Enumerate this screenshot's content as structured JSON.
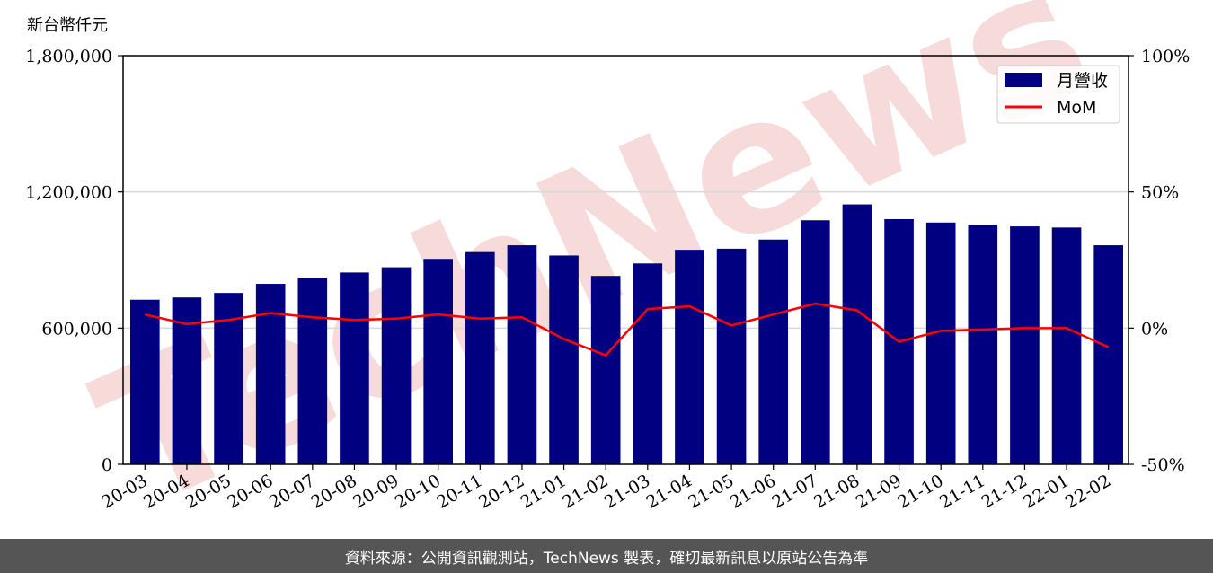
{
  "footer": {
    "text": "資料來源：公開資訊觀測站，TechNews 製表，確切最新訊息以原站公告為準",
    "background": "#555555"
  },
  "watermark": {
    "text": "TechNews",
    "color": "#f6d4d4"
  },
  "colors": {
    "bar": "#000080",
    "line": "#ff0000",
    "grid": "#d9d9d9"
  },
  "chart_data": {
    "type": "bar",
    "title": "",
    "xlabel": "",
    "ylabel": "新台幣仟元",
    "ylim": [
      0,
      1800000
    ],
    "y2lim": [
      -50,
      100
    ],
    "yticks": [
      "0",
      "600,000",
      "1,200,000",
      "1,800,000"
    ],
    "y2ticks": [
      "-50%",
      "0%",
      "50%",
      "100%"
    ],
    "grid": "horizontal",
    "legend_position": "top-right",
    "categories": [
      "20-03",
      "20-04",
      "20-05",
      "20-06",
      "20-07",
      "20-08",
      "20-09",
      "20-10",
      "20-11",
      "20-12",
      "21-01",
      "21-02",
      "21-03",
      "21-04",
      "21-05",
      "21-06",
      "21-07",
      "21-08",
      "21-09",
      "21-10",
      "21-11",
      "21-12",
      "22-01",
      "22-02"
    ],
    "series": [
      {
        "name": "月營收",
        "type": "bar",
        "axis": "left",
        "values": [
          725000,
          735000,
          755000,
          795000,
          822000,
          845000,
          868000,
          905000,
          935000,
          965000,
          920000,
          830000,
          885000,
          945000,
          950000,
          990000,
          1075000,
          1145000,
          1080000,
          1065000,
          1055000,
          1048000,
          1043000,
          965000
        ]
      },
      {
        "name": "MoM",
        "type": "line",
        "axis": "right",
        "values": [
          5,
          1.5,
          3,
          5.5,
          4,
          3,
          3.5,
          5,
          3.5,
          4,
          -4,
          -10,
          7,
          8,
          1,
          5,
          9,
          6.5,
          -5,
          -1,
          -0.5,
          0,
          0,
          -7
        ]
      }
    ]
  }
}
